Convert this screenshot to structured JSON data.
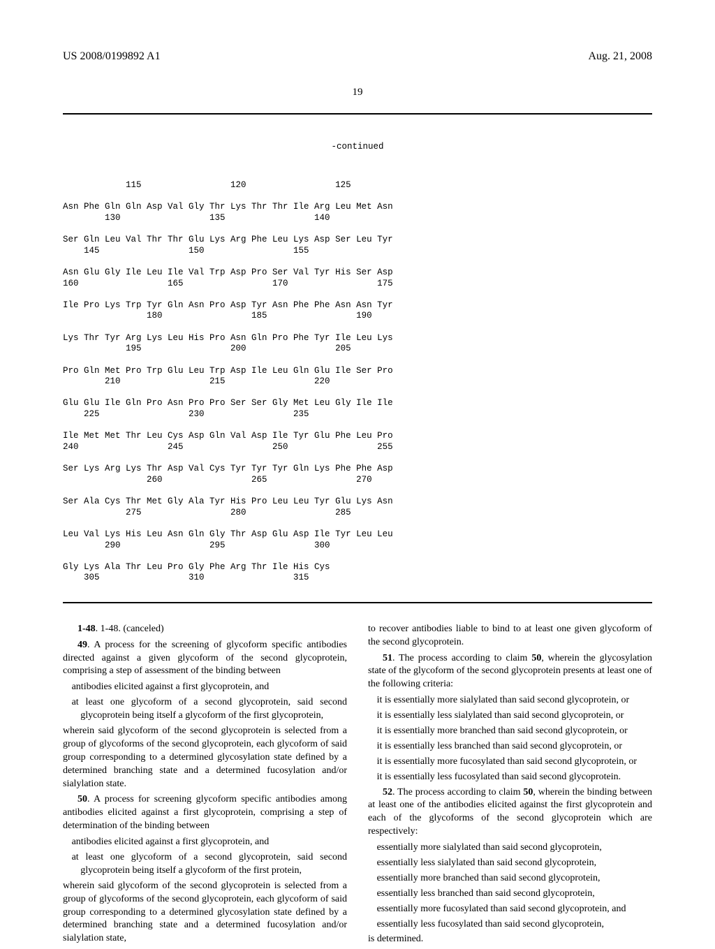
{
  "header": {
    "pub_num": "US 2008/0199892 A1",
    "date": "Aug. 21, 2008"
  },
  "page_number": "19",
  "continued_label": "-continued",
  "sequence_block": "            115                 120                 125\n\nAsn Phe Gln Gln Asp Val Gly Thr Lys Thr Thr Ile Arg Leu Met Asn\n        130                 135                 140\n\nSer Gln Leu Val Thr Thr Glu Lys Arg Phe Leu Lys Asp Ser Leu Tyr\n    145                 150                 155\n\nAsn Glu Gly Ile Leu Ile Val Trp Asp Pro Ser Val Tyr His Ser Asp\n160                 165                 170                 175\n\nIle Pro Lys Trp Tyr Gln Asn Pro Asp Tyr Asn Phe Phe Asn Asn Tyr\n                180                 185                 190\n\nLys Thr Tyr Arg Lys Leu His Pro Asn Gln Pro Phe Tyr Ile Leu Lys\n            195                 200                 205\n\nPro Gln Met Pro Trp Glu Leu Trp Asp Ile Leu Gln Glu Ile Ser Pro\n        210                 215                 220\n\nGlu Glu Ile Gln Pro Asn Pro Pro Ser Ser Gly Met Leu Gly Ile Ile\n    225                 230                 235\n\nIle Met Met Thr Leu Cys Asp Gln Val Asp Ile Tyr Glu Phe Leu Pro\n240                 245                 250                 255\n\nSer Lys Arg Lys Thr Asp Val Cys Tyr Tyr Tyr Gln Lys Phe Phe Asp\n                260                 265                 270\n\nSer Ala Cys Thr Met Gly Ala Tyr His Pro Leu Leu Tyr Glu Lys Asn\n            275                 280                 285\n\nLeu Val Lys His Leu Asn Gln Gly Thr Asp Glu Asp Ile Tyr Leu Leu\n        290                 295                 300\n\nGly Lys Ala Thr Leu Pro Gly Phe Arg Thr Ile His Cys\n    305                 310                 315",
  "claims": {
    "c148": "1-48. (canceled)",
    "c49_lead": "49. A process for the screening of glycoform specific antibodies directed against a given glycoform of the second glycoprotein, comprising a step of assessment of the binding between",
    "c49_a": "antibodies elicited against a first glycoprotein, and",
    "c49_b": "at least one glycoform of a second glycoprotein, said second glycoprotein being itself a glycoform of the first glycoprotein,",
    "c49_tail": "wherein said glycoform of the second glycoprotein is selected from a group of glycoforms of the second glycoprotein, each glycoform of said group corresponding to a determined glycosylation state defined by a determined branching state and a determined fucosylation and/or sialylation state.",
    "c50_lead": "50. A process for screening glycoform specific antibodies among antibodies elicited against a first glycoprotein, comprising a step of determination of the binding between",
    "c50_a": "antibodies elicited against a first glycoprotein, and",
    "c50_b": "at least one glycoform of a second glycoprotein, said second glycoprotein being itself a glycoform of the first protein,",
    "c50_tail1": "wherein said glycoform of the second glycoprotein is selected from a group of glycoforms of the second glycoprotein, each glycoform of said group corresponding to a determined glycosylation state defined by a determined branching state and a determined fucosylation and/or sialylation state,",
    "c50_tail2": "to recover antibodies liable to bind to at least one given glycoform of the second glycoprotein.",
    "c51_lead": "51. The process according to claim 50, wherein the glycosylation state of the glycoform of the second glycoprotein presents at least one of the following criteria:",
    "c51_a": "it is essentially more sialylated than said second glycoprotein, or",
    "c51_b": "it is essentially less sialylated than said second glycoprotein, or",
    "c51_c": "it is essentially more branched than said second glycoprotein, or",
    "c51_d": "it is essentially less branched than said second glycoprotein, or",
    "c51_e": "it is essentially more fucosylated than said second glycoprotein, or",
    "c51_f": "it is essentially less fucosylated than said second glycoprotein.",
    "c52_lead": "52. The process according to claim 50, wherein the binding between at least one of the antibodies elicited against the first glycoprotein and each of the glycoforms of the second glycoprotein which are respectively:",
    "c52_a": "essentially more sialylated than said second glycoprotein,",
    "c52_b": "essentially less sialylated than said second glycoprotein,",
    "c52_c": "essentially more branched than said second glycoprotein,",
    "c52_d": "essentially less branched than said second glycoprotein,",
    "c52_e": "essentially more fucosylated than said second glycoprotein, and",
    "c52_f": "essentially less fucosylated than said second glycoprotein,",
    "c52_tail": "is determined."
  }
}
